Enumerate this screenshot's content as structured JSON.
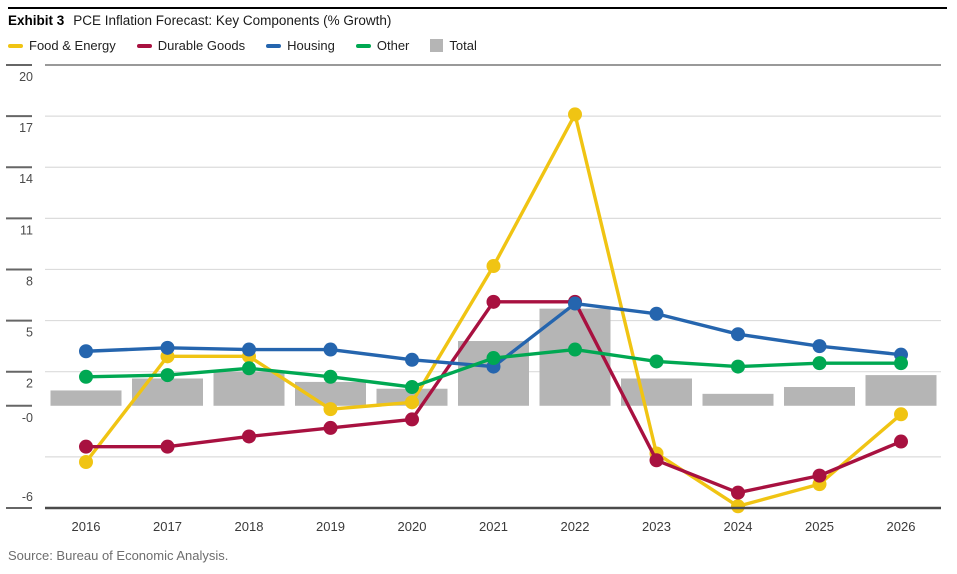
{
  "header": {
    "exhibit_label": "Exhibit 3",
    "title": "PCE Inflation Forecast: Key Components (% Growth)"
  },
  "legend": {
    "items": [
      {
        "label": "Food & Energy",
        "marker": "line",
        "color": "#F0C413"
      },
      {
        "label": "Durable Goods",
        "marker": "line",
        "color": "#A81140"
      },
      {
        "label": "Housing",
        "marker": "line",
        "color": "#2565AE"
      },
      {
        "label": "Other",
        "marker": "line",
        "color": "#00A852"
      },
      {
        "label": "Total",
        "marker": "square",
        "color": "#B5B5B5"
      }
    ]
  },
  "chart_data": {
    "type": "combo-bar-line",
    "title": "PCE Inflation Forecast: Key Components (% Growth)",
    "categories": [
      "2016",
      "2017",
      "2018",
      "2019",
      "2020",
      "2021",
      "2022",
      "2023",
      "2024",
      "2025",
      "2026"
    ],
    "bar_series": {
      "name": "Total",
      "color": "#B5B5B5",
      "values": [
        0.9,
        1.6,
        2.0,
        1.4,
        1.0,
        3.8,
        5.7,
        1.6,
        0.7,
        1.1,
        1.8
      ]
    },
    "line_series": [
      {
        "name": "Food & Energy",
        "color": "#F0C413",
        "values": [
          -3.3,
          2.9,
          2.9,
          -0.2,
          0.2,
          8.2,
          17.1,
          -2.8,
          -5.9,
          -4.6,
          -0.5
        ]
      },
      {
        "name": "Durable Goods",
        "color": "#A81140",
        "values": [
          -2.4,
          -2.4,
          -1.8,
          -1.3,
          -0.8,
          6.1,
          6.1,
          -3.2,
          -5.1,
          -4.1,
          -2.1
        ]
      },
      {
        "name": "Housing",
        "color": "#2565AE",
        "values": [
          3.2,
          3.4,
          3.3,
          3.3,
          2.7,
          2.3,
          6.0,
          5.4,
          4.2,
          3.5,
          3.0
        ]
      },
      {
        "name": "Other",
        "color": "#00A852",
        "values": [
          1.7,
          1.8,
          2.2,
          1.7,
          1.1,
          2.8,
          3.3,
          2.6,
          2.3,
          2.5,
          2.5
        ]
      }
    ],
    "y_axis": {
      "ylim": [
        -6,
        20
      ],
      "labels": [
        {
          "text": "20",
          "value": 20
        },
        {
          "text": "17",
          "value": 17
        },
        {
          "text": "14",
          "value": 14
        },
        {
          "text": "11",
          "value": 11
        },
        {
          "text": "8",
          "value": 8
        },
        {
          "text": "5",
          "value": 5
        },
        {
          "text": "2",
          "value": 2
        },
        {
          "text": "-0",
          "value": 0
        },
        {
          "text": "-6",
          "value": -6
        }
      ],
      "gridline_values": [
        20,
        17,
        14,
        11,
        8,
        5,
        2,
        -3
      ]
    },
    "legend_position": "top",
    "grid": true
  },
  "footer": {
    "source": "Source: Bureau of Economic Analysis."
  },
  "colors": {
    "food_energy": "#F0C413",
    "durable_goods": "#A81140",
    "housing": "#2565AE",
    "other": "#00A852",
    "total_bar": "#B5B5B5",
    "gridline": "#DCDCDC",
    "top_gridline": "#999999",
    "axis_line": "#4A4A4A",
    "tick": "#666666",
    "top_rule": "#000000"
  }
}
